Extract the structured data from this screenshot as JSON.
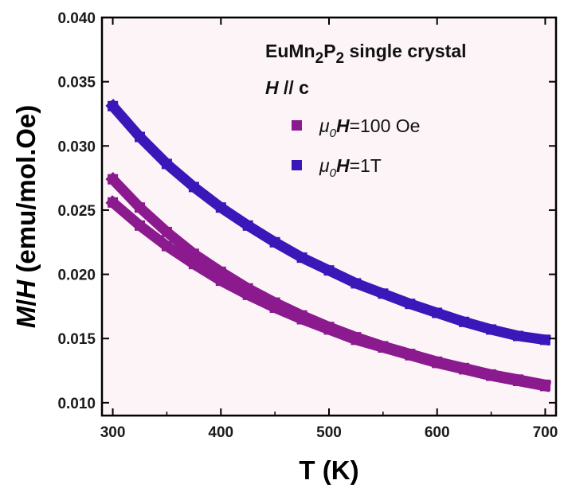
{
  "chart_data": {
    "type": "scatter",
    "xlabel": "T (K)",
    "ylabel_parts": {
      "m": "M",
      "slash": "/",
      "h": "H",
      "unit": " (emu/mol.Oe)"
    },
    "xlim": [
      290,
      710
    ],
    "ylim": [
      0.009,
      0.04
    ],
    "x_ticks": [
      300,
      400,
      500,
      600,
      700
    ],
    "x_tick_labels": [
      "300",
      "400",
      "500",
      "600",
      "700"
    ],
    "y_ticks": [
      0.01,
      0.015,
      0.02,
      0.025,
      0.03,
      0.035,
      0.04
    ],
    "y_tick_labels": [
      "0.010",
      "0.015",
      "0.020",
      "0.025",
      "0.030",
      "0.035",
      "0.040"
    ],
    "annotation": {
      "sample": {
        "base": "EuMn",
        "sub1": "2",
        "mid": "P",
        "sub2": "2",
        "rest": " single crystal"
      },
      "field_dir": {
        "h": "H",
        "rest": " // c"
      }
    },
    "legend_position": "top-right",
    "plot_background": "#fdf4f8",
    "series": [
      {
        "legend": {
          "mu": "μ",
          "sub": "0",
          "h": "H",
          "value": "=100 Oe"
        },
        "color": "#8b1a8f",
        "x": [
          300,
          325,
          350,
          375,
          400,
          425,
          450,
          475,
          500,
          525,
          550,
          575,
          600,
          625,
          650,
          675,
          700
        ],
        "y": [
          0.0274,
          0.0252,
          0.0233,
          0.0216,
          0.0202,
          0.0189,
          0.0178,
          0.0168,
          0.0159,
          0.0151,
          0.0144,
          0.0138,
          0.0132,
          0.0127,
          0.0122,
          0.0118,
          0.0114
        ]
      },
      {
        "color": "#8b1a8f",
        "x": [
          300,
          325,
          350,
          375,
          400,
          425,
          450,
          475,
          500,
          525,
          550,
          575,
          600,
          625,
          650,
          675,
          700
        ],
        "y": [
          0.0256,
          0.0238,
          0.0222,
          0.0208,
          0.0195,
          0.0184,
          0.0174,
          0.0165,
          0.0157,
          0.0149,
          0.0143,
          0.0137,
          0.0131,
          0.0126,
          0.0121,
          0.0117,
          0.0113
        ]
      },
      {
        "legend": {
          "mu": "μ",
          "sub": "0",
          "h": "H",
          "value": "=1T"
        },
        "color": "#3a17b8",
        "x": [
          300,
          325,
          350,
          375,
          400,
          425,
          450,
          475,
          500,
          525,
          550,
          575,
          600,
          625,
          650,
          675,
          700
        ],
        "y": [
          0.0331,
          0.0307,
          0.0286,
          0.0268,
          0.0252,
          0.0238,
          0.0225,
          0.0213,
          0.0203,
          0.0193,
          0.0185,
          0.0177,
          0.017,
          0.0163,
          0.0157,
          0.0152,
          0.0149
        ]
      }
    ]
  }
}
